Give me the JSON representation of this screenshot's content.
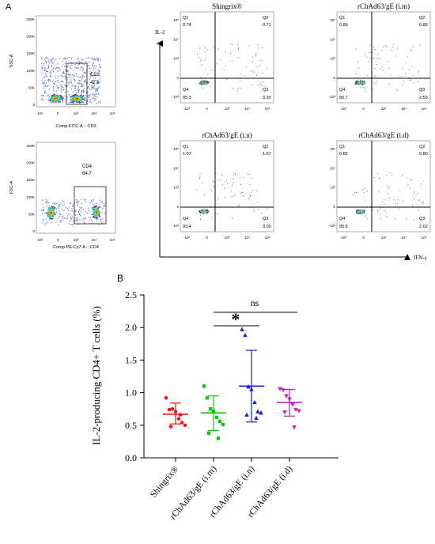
{
  "panel_a_label": "A",
  "panel_b_label": "B",
  "gating": [
    {
      "y_label": "SSC-A",
      "x_label": "Comp-FITC-A :: CD3",
      "gate_name": "CD3",
      "gate_value": "47.6",
      "y_ticks": [
        "250K",
        "200K",
        "150K",
        "100K",
        "50K",
        "0"
      ],
      "x_ticks": [
        "-10³",
        "0",
        "10³",
        "10⁴",
        "10⁵"
      ]
    },
    {
      "y_label": "FSC-A",
      "x_label": "Comp-PE-Cy7-A :: CD4",
      "gate_name": "CD4",
      "gate_value": "64.7",
      "y_ticks": [
        "250K",
        "200K",
        "150K",
        "100K",
        "50K",
        "0"
      ],
      "x_ticks": [
        "-10³",
        "0",
        "10³",
        "10⁴",
        "10⁵"
      ]
    }
  ],
  "quadrant_axes": {
    "y_label": "IL-2",
    "x_label": "IFN-γ",
    "y_ticks": [
      "10⁵",
      "10⁴",
      "10³",
      "0",
      "-10³"
    ],
    "x_ticks": [
      "-10³",
      "0",
      "10³",
      "10⁴",
      "10⁵"
    ]
  },
  "quadrant_plots": [
    {
      "title": "Shingrix®",
      "q1": "0.74",
      "q2": "0.71",
      "q3": "3.20",
      "q4": "95.3"
    },
    {
      "title": "rChAd63/gE  (i.m)",
      "q1": "0.89",
      "q2": "0.89",
      "q3": "2.53",
      "q4": "95.7"
    },
    {
      "title": "rChAd63/gE  (i.n)",
      "q1": "1.97",
      "q2": "1.67",
      "q3": "3.00",
      "q4": "93.4"
    },
    {
      "title": "rChAd63/gE  (i.d)",
      "q1": "0.82",
      "q2": "0.80",
      "q3": "2.62",
      "q4": "95.8"
    }
  ],
  "quadrant_names": {
    "q1": "Q1",
    "q2": "Q2",
    "q3": "Q3",
    "q4": "Q4"
  },
  "chart_data": {
    "type": "scatter",
    "ylabel": "IL-2-producing CD4+ T cells (%)",
    "ylim": [
      0,
      2.5
    ],
    "yticks": [
      "0.0",
      "0.5",
      "1.0",
      "1.5",
      "2.0",
      "2.5"
    ],
    "categories": [
      "Shingrix®",
      "rChAd63/gE (i.m)",
      "rChAd63/gE (i.n)",
      "rChAd63/gE (i.d)"
    ],
    "colors": [
      "#e8141c",
      "#16c316",
      "#1b1bd6",
      "#c21bc2"
    ],
    "markers": [
      "circle",
      "square",
      "triangle-up",
      "triangle-down"
    ],
    "series": [
      {
        "values": [
          0.92,
          0.74,
          0.75,
          0.71,
          0.6,
          0.54,
          0.5,
          0.48,
          0.66
        ],
        "mean": 0.67,
        "sd_low": 0.52,
        "sd_high": 0.84
      },
      {
        "values": [
          1.1,
          0.92,
          0.75,
          0.72,
          0.62,
          0.56,
          0.51,
          0.38,
          0.3
        ],
        "mean": 0.69,
        "sd_low": 0.42,
        "sd_high": 0.95
      },
      {
        "values": [
          1.97,
          1.88,
          1.09,
          1.05,
          0.85,
          0.71,
          0.69,
          0.66,
          0.61
        ],
        "mean": 1.1,
        "sd_low": 0.55,
        "sd_high": 1.65
      },
      {
        "values": [
          1.06,
          1.04,
          0.95,
          0.9,
          0.82,
          0.74,
          0.72,
          0.7,
          0.47
        ],
        "mean": 0.85,
        "sd_low": 0.64,
        "sd_high": 1.05
      }
    ],
    "annotations": [
      {
        "text": "ns",
        "from": 1,
        "to": 3
      },
      {
        "text": "*",
        "from": 1,
        "to": 2
      }
    ]
  }
}
